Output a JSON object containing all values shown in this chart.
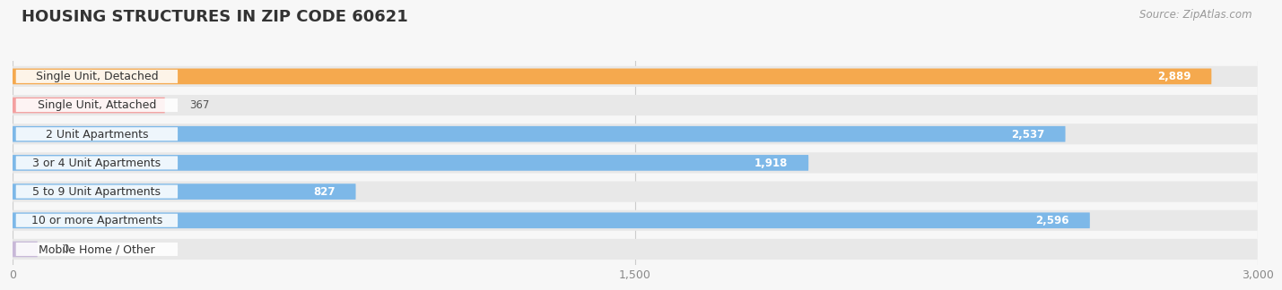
{
  "title": "HOUSING STRUCTURES IN ZIP CODE 60621",
  "source": "Source: ZipAtlas.com",
  "categories": [
    "Single Unit, Detached",
    "Single Unit, Attached",
    "2 Unit Apartments",
    "3 or 4 Unit Apartments",
    "5 to 9 Unit Apartments",
    "10 or more Apartments",
    "Mobile Home / Other"
  ],
  "values": [
    2889,
    367,
    2537,
    1918,
    827,
    2596,
    0
  ],
  "bar_colors": [
    "#f5a94e",
    "#f4a0a0",
    "#7db8e8",
    "#7db8e8",
    "#7db8e8",
    "#7db8e8",
    "#c8b8d8"
  ],
  "xlim": [
    0,
    3000
  ],
  "xticks": [
    0,
    1500,
    3000
  ],
  "background_color": "#f7f7f7",
  "bar_bg_color": "#e8e8e8",
  "title_fontsize": 13,
  "label_fontsize": 9,
  "value_fontsize": 8.5,
  "source_fontsize": 8.5
}
